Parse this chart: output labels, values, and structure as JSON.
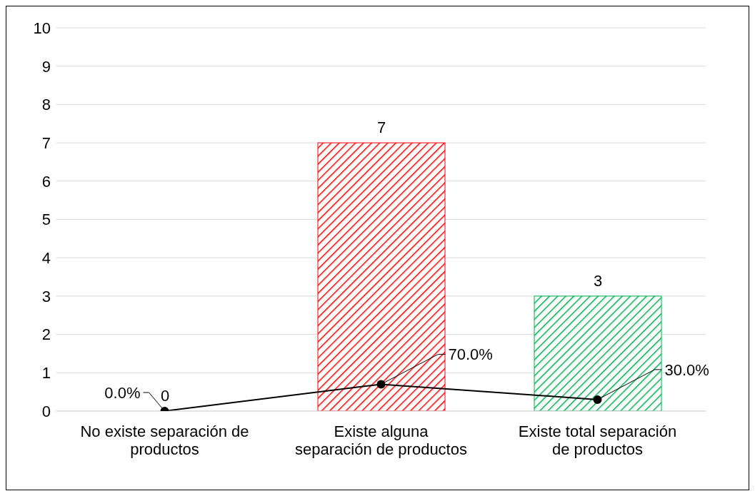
{
  "chart_data": {
    "type": "bar",
    "categories": [
      "No existe separación de productos",
      "Existe alguna separación de productos",
      "Existe total separación de productos"
    ],
    "series": [
      {
        "colors": [
          "#ff0000",
          "#ff0000",
          "#00b050"
        ],
        "values": [
          0,
          7,
          3
        ],
        "data_labels": true
      },
      {
        "type": "line",
        "color": "#000000",
        "marker": "circle",
        "values": [
          0,
          0.7,
          0.3
        ],
        "value_labels": [
          "0.0%",
          "70.0%",
          "30.0%"
        ]
      }
    ],
    "ylim": [
      0,
      10
    ],
    "yticks": [
      0,
      1,
      2,
      3,
      4,
      5,
      6,
      7,
      8,
      9,
      10
    ],
    "grid": "y"
  }
}
